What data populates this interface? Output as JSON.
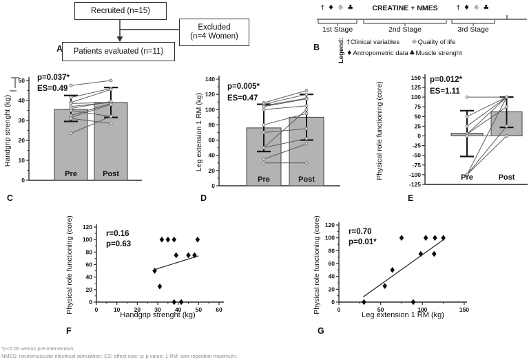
{
  "panel_labels": {
    "A": "A",
    "B": "B",
    "C": "C",
    "D": "D",
    "E": "E",
    "F": "F",
    "G": "G"
  },
  "flowchart": {
    "recruited": "Recruited (n=15)",
    "excluded_line1": "Excluded",
    "excluded_line2": "(n=4 Women)",
    "evaluated": "Patients evaluated (n=11)"
  },
  "timeline": {
    "stage1_symbols": "† ♦ ☼ ♣",
    "stage2_title": "CREATINE + NMES",
    "stage3_symbols": "† ♦ ☼ ♣",
    "stages": [
      "1st Stage",
      "2nd Stage",
      "3rd Stage"
    ],
    "legend_title": "Legend:",
    "legend_items": [
      {
        "symbol": "†",
        "text": "Clinical variables"
      },
      {
        "symbol": "☼",
        "text": "Quality of life"
      },
      {
        "symbol": "♦",
        "text": "Antropometric data"
      },
      {
        "symbol": "♣",
        "text": "Muscle strenght"
      }
    ]
  },
  "chart_data": [
    {
      "id": "C",
      "type": "paired-bar",
      "ylabel": "Handgrip strenght (kg)",
      "ylim": [
        0,
        50
      ],
      "ytick_step": 10,
      "yminor_step": 5,
      "categories": [
        "Pre",
        "Post"
      ],
      "means": [
        35.5,
        39
      ],
      "whiskers": [
        [
          29.5,
          42.5
        ],
        [
          31.5,
          46.5
        ]
      ],
      "pairs": [
        [
          47.5,
          50
        ],
        [
          41.5,
          46
        ],
        [
          39,
          45.5
        ],
        [
          38.5,
          39
        ],
        [
          37,
          39
        ],
        [
          36,
          39.5
        ],
        [
          35,
          32
        ],
        [
          32.5,
          38.5
        ],
        [
          31.5,
          38
        ],
        [
          31,
          28.5
        ],
        [
          23.5,
          32
        ]
      ],
      "annotations": [
        "p=0.037*",
        "ES=0.49"
      ]
    },
    {
      "id": "D",
      "type": "paired-bar",
      "ylabel": "Leg extension 1 RM (kg)",
      "ylim": [
        0,
        140
      ],
      "ytick_step": 20,
      "yminor_step": 10,
      "categories": [
        "Pre",
        "Post"
      ],
      "means": [
        76,
        90
      ],
      "whiskers": [
        [
          45,
          107
        ],
        [
          60,
          120
        ]
      ],
      "pairs": [
        [
          109,
          125
        ],
        [
          107,
          120
        ],
        [
          105,
          115
        ],
        [
          104,
          114
        ],
        [
          100,
          105
        ],
        [
          80,
          95
        ],
        [
          70,
          75
        ],
        [
          50,
          100
        ],
        [
          50,
          62
        ],
        [
          35,
          55
        ],
        [
          30,
          30
        ]
      ],
      "annotations": [
        "p=0.005*",
        "ES=0.47"
      ]
    },
    {
      "id": "E",
      "type": "paired-bar",
      "ylabel": "Physical role functioning (core)",
      "ylim": [
        -125,
        150
      ],
      "ytick_step": 25,
      "yminor_step": 0,
      "categories": [
        "Pre",
        "Post"
      ],
      "means": [
        7,
        62
      ],
      "whiskers": [
        [
          -53,
          65
        ],
        [
          22,
          100
        ]
      ],
      "pairs": [
        [
          100,
          100
        ],
        [
          50,
          100
        ],
        [
          25,
          100
        ],
        [
          5,
          100
        ],
        [
          5,
          75
        ],
        [
          0,
          0
        ],
        [
          -100,
          100
        ],
        [
          -100,
          25
        ],
        [
          -100,
          0
        ]
      ],
      "annotations": [
        "p=0.012*",
        "ES=1.11"
      ]
    },
    {
      "id": "F",
      "type": "scatter",
      "xlabel": "Handgrip strenght (kg)",
      "ylabel": "Physical role functioning (core)",
      "xlim": [
        0,
        60
      ],
      "xtick_step": 10,
      "xminor_step": 5,
      "ylim": [
        0,
        120
      ],
      "ytick_step": 20,
      "yminor_step": 10,
      "points": [
        [
          32,
          100
        ],
        [
          35,
          100
        ],
        [
          38,
          100
        ],
        [
          49.5,
          100
        ],
        [
          39,
          75
        ],
        [
          45,
          75
        ],
        [
          48,
          75
        ],
        [
          28.5,
          50
        ],
        [
          31,
          25
        ],
        [
          38,
          0
        ],
        [
          41.5,
          0
        ]
      ],
      "trend": [
        [
          28.5,
          52
        ],
        [
          50,
          74
        ]
      ],
      "annotations": [
        "r=0.16",
        "p=0.63"
      ]
    },
    {
      "id": "G",
      "type": "scatter",
      "xlabel": "Leg extension 1 RM (kg)",
      "ylabel": "Physical role functioning (core)",
      "xlim": [
        0,
        150
      ],
      "xtick_step": 50,
      "xminor_step": 25,
      "ylim": [
        0,
        120
      ],
      "ytick_step": 20,
      "yminor_step": 10,
      "points": [
        [
          30,
          0
        ],
        [
          55,
          25
        ],
        [
          64,
          50
        ],
        [
          75,
          100
        ],
        [
          89,
          0
        ],
        [
          98,
          75
        ],
        [
          104,
          100
        ],
        [
          114,
          75
        ],
        [
          115,
          100
        ],
        [
          125,
          100
        ]
      ],
      "trend": [
        [
          29,
          8
        ],
        [
          125,
          97
        ]
      ],
      "annotations": [
        "r=0.70",
        "p=0.01*"
      ]
    }
  ],
  "footnotes": {
    "line1": "*p<0.05 versus pre-intervention.",
    "line2": "NMES: neuromuscular electrical stimulation; ES: effect size; p: p value; 1 RM: one-repetition maximum."
  },
  "colors": {
    "bar_fill": "#b3b3b3",
    "bar_stroke": "#3f3f3f",
    "pair_line": "#5a5a5a",
    "endpoint_fill": "#dfdfdf",
    "endpoint_stroke": "#707070",
    "error_bar": "#141414",
    "point": "#0a0a0a",
    "trend": "#2e2e2e",
    "axis": "#2b2b2b",
    "text": "#111111",
    "footnote": "#8b8b8b"
  }
}
